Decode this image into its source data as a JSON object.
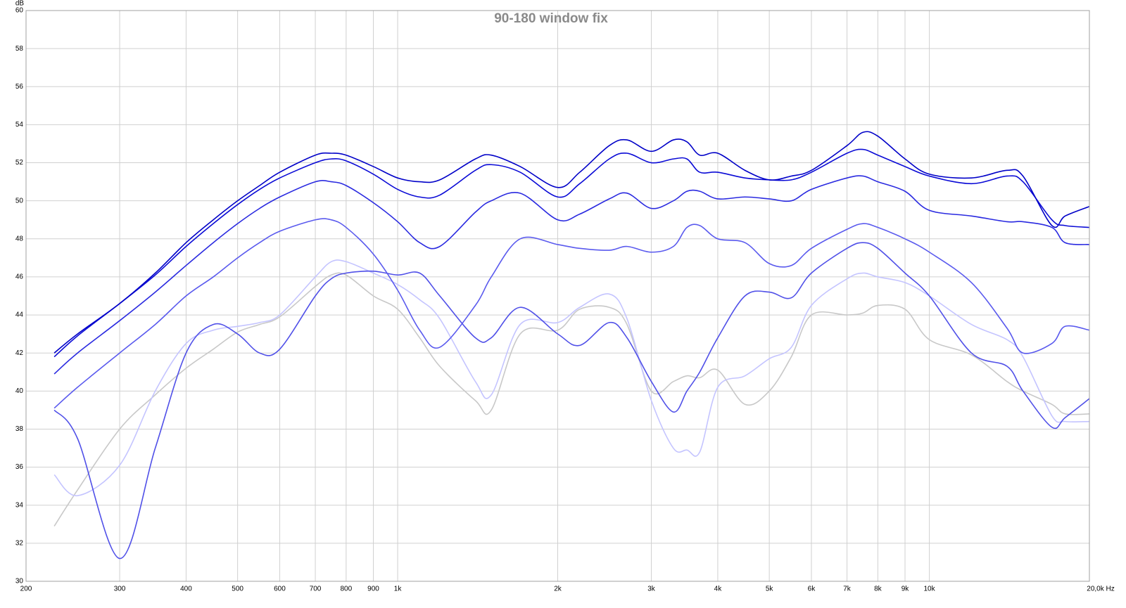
{
  "chart_data": {
    "type": "line",
    "title": "90-180 window fix",
    "y_label": "dB",
    "log_x": true,
    "grid": true,
    "xlim": [
      200,
      20000
    ],
    "ylim": [
      30,
      60
    ],
    "xticks": [
      200,
      300,
      400,
      500,
      600,
      700,
      800,
      900,
      {
        "value": 1000,
        "label": "1k"
      },
      {
        "value": 2000,
        "label": "2k"
      },
      {
        "value": 3000,
        "label": "3k"
      },
      {
        "value": 4000,
        "label": "4k"
      },
      {
        "value": 5000,
        "label": "5k"
      },
      {
        "value": 6000,
        "label": "6k"
      },
      {
        "value": 7000,
        "label": "7k"
      },
      {
        "value": 8000,
        "label": "8k"
      },
      {
        "value": 9000,
        "label": "9k"
      },
      {
        "value": 10000,
        "label": "10k"
      },
      {
        "value": 20000,
        "label": "20,0k Hz"
      }
    ],
    "yticks": [
      30,
      32,
      34,
      36,
      38,
      40,
      42,
      44,
      46,
      48,
      50,
      52,
      54,
      56,
      58,
      60
    ],
    "x": [
      226,
      250,
      300,
      350,
      400,
      450,
      500,
      550,
      600,
      700,
      750,
      800,
      900,
      1000,
      1100,
      1200,
      1400,
      1500,
      1700,
      2000,
      2200,
      2500,
      2700,
      3000,
      3300,
      3500,
      3700,
      4000,
      4500,
      5000,
      5500,
      6000,
      7000,
      7500,
      8000,
      9000,
      10000,
      12000,
      14000,
      15000,
      17000,
      18000,
      20000
    ],
    "series": [
      {
        "color": "#0000c8",
        "values": [
          42.0,
          43.0,
          44.6,
          46.2,
          47.8,
          49.0,
          50.0,
          50.8,
          51.5,
          52.4,
          52.5,
          52.4,
          51.8,
          51.2,
          51.0,
          51.1,
          52.2,
          52.4,
          51.8,
          50.7,
          51.5,
          52.9,
          53.2,
          52.6,
          53.2,
          53.1,
          52.4,
          52.5,
          51.6,
          51.1,
          51.3,
          51.6,
          52.9,
          53.6,
          53.4,
          52.2,
          51.4,
          51.2,
          51.6,
          51.3,
          48.7,
          49.2,
          49.7
        ]
      },
      {
        "color": "#0a0ad6",
        "values": [
          41.8,
          42.9,
          44.6,
          46.1,
          47.6,
          48.8,
          49.8,
          50.6,
          51.2,
          52.0,
          52.2,
          52.1,
          51.4,
          50.6,
          50.2,
          50.3,
          51.6,
          51.9,
          51.5,
          50.2,
          50.9,
          52.2,
          52.5,
          52.0,
          52.2,
          52.2,
          51.5,
          51.5,
          51.2,
          51.1,
          51.1,
          51.5,
          52.5,
          52.7,
          52.4,
          51.8,
          51.3,
          50.9,
          51.3,
          51.0,
          49.0,
          48.7,
          48.6
        ]
      },
      {
        "color": "#2a2ae0",
        "values": [
          40.9,
          42.0,
          43.7,
          45.2,
          46.6,
          47.8,
          48.8,
          49.6,
          50.2,
          51.0,
          51.0,
          50.8,
          49.9,
          48.9,
          47.8,
          47.6,
          49.4,
          50.0,
          50.4,
          49.0,
          49.3,
          50.1,
          50.4,
          49.6,
          50.0,
          50.5,
          50.5,
          50.1,
          50.2,
          50.1,
          50.0,
          50.6,
          51.2,
          51.3,
          51.0,
          50.5,
          49.5,
          49.2,
          48.9,
          48.9,
          48.6,
          47.8,
          47.7
        ]
      },
      {
        "color": "#5a5aee",
        "values": [
          39.1,
          40.2,
          42.0,
          43.5,
          45.0,
          46.0,
          47.0,
          47.8,
          48.4,
          49.0,
          49.0,
          48.6,
          47.2,
          45.3,
          43.2,
          42.3,
          44.5,
          46.0,
          48.0,
          47.7,
          47.5,
          47.4,
          47.6,
          47.3,
          47.6,
          48.6,
          48.7,
          48.0,
          47.8,
          46.7,
          46.6,
          47.5,
          48.5,
          48.8,
          48.6,
          48.0,
          47.3,
          45.7,
          43.3,
          42.0,
          42.5,
          43.4,
          43.2
        ]
      },
      {
        "color": "#5050e8",
        "values": [
          39.0,
          37.5,
          31.2,
          37.0,
          42.0,
          43.5,
          43.0,
          42.0,
          42.2,
          45.0,
          45.9,
          46.2,
          46.3,
          46.1,
          46.2,
          45.0,
          42.8,
          42.8,
          44.4,
          43.0,
          42.4,
          43.6,
          42.8,
          40.5,
          38.9,
          40.0,
          41.0,
          42.8,
          45.0,
          45.2,
          44.9,
          46.2,
          47.5,
          47.8,
          47.5,
          46.2,
          45.0,
          42.0,
          41.3,
          40.0,
          38.1,
          38.6,
          39.6
        ]
      },
      {
        "color": "#c4c4ff",
        "values": [
          35.6,
          34.5,
          36.1,
          40.0,
          42.5,
          43.2,
          43.4,
          43.6,
          44.0,
          46.0,
          46.8,
          46.8,
          46.2,
          45.6,
          44.8,
          43.8,
          40.5,
          39.8,
          43.5,
          43.6,
          44.4,
          45.1,
          43.8,
          39.5,
          37.0,
          36.9,
          36.8,
          40.2,
          40.8,
          41.7,
          42.3,
          44.5,
          45.9,
          46.2,
          46.0,
          45.7,
          45.0,
          43.5,
          42.7,
          41.8,
          38.7,
          38.4,
          38.4
        ]
      },
      {
        "color": "#c8c8c8",
        "values": [
          32.9,
          34.8,
          38.0,
          39.8,
          41.2,
          42.2,
          43.1,
          43.5,
          43.9,
          45.5,
          46.1,
          46.1,
          45.0,
          44.3,
          42.8,
          41.3,
          39.5,
          39.0,
          43.0,
          43.2,
          44.3,
          44.4,
          43.5,
          40.0,
          40.5,
          40.8,
          40.7,
          41.1,
          39.3,
          40.0,
          41.8,
          44.0,
          44.0,
          44.1,
          44.5,
          44.3,
          42.7,
          41.9,
          40.5,
          40.0,
          39.3,
          38.8,
          38.8
        ]
      }
    ]
  }
}
